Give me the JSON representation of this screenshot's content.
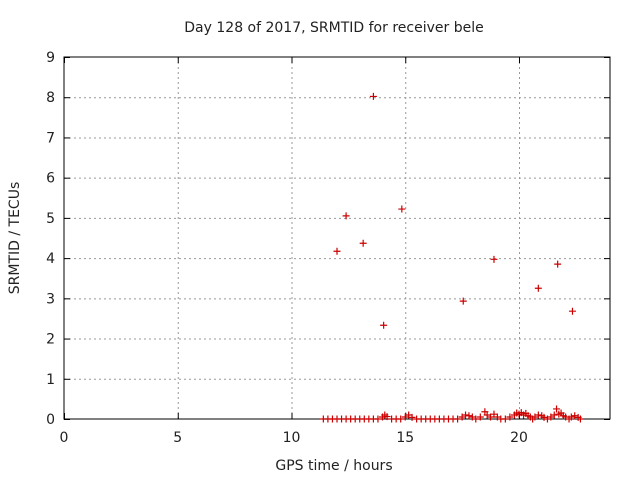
{
  "chart_data": {
    "type": "scatter",
    "title": "Day 128 of 2017, SRMTID for receiver bele",
    "xlabel": "GPS time / hours",
    "ylabel": "SRMTID / TECUs",
    "xlim": [
      0,
      24
    ],
    "ylim": [
      0,
      9
    ],
    "xticks": [
      0,
      5,
      10,
      15,
      20
    ],
    "yticks": [
      0,
      1,
      2,
      3,
      4,
      5,
      6,
      7,
      8,
      9
    ],
    "grid": true,
    "marker": "+",
    "colors": {
      "series": "#cc0000",
      "grid": "#999999",
      "axis": "#000000"
    },
    "series": [
      {
        "name": "SRMTID",
        "points": [
          [
            12.0,
            4.17
          ],
          [
            12.4,
            5.05
          ],
          [
            13.15,
            4.37
          ],
          [
            13.6,
            8.02
          ],
          [
            14.05,
            2.33
          ],
          [
            14.85,
            5.22
          ],
          [
            17.55,
            2.93
          ],
          [
            18.9,
            3.97
          ],
          [
            20.85,
            3.25
          ],
          [
            21.7,
            3.85
          ],
          [
            22.35,
            2.68
          ],
          [
            11.4,
            0.0
          ],
          [
            11.6,
            0.0
          ],
          [
            11.8,
            0.0
          ],
          [
            12.0,
            0.0
          ],
          [
            12.2,
            0.0
          ],
          [
            12.4,
            0.0
          ],
          [
            12.6,
            0.0
          ],
          [
            12.8,
            0.0
          ],
          [
            13.0,
            0.0
          ],
          [
            13.2,
            0.0
          ],
          [
            13.4,
            0.0
          ],
          [
            13.6,
            0.0
          ],
          [
            13.8,
            0.0
          ],
          [
            14.0,
            0.05
          ],
          [
            14.1,
            0.1
          ],
          [
            14.2,
            0.06
          ],
          [
            14.4,
            0.0
          ],
          [
            14.6,
            0.0
          ],
          [
            14.8,
            0.0
          ],
          [
            15.0,
            0.05
          ],
          [
            15.15,
            0.1
          ],
          [
            15.3,
            0.04
          ],
          [
            15.5,
            0.0
          ],
          [
            15.7,
            0.0
          ],
          [
            15.9,
            0.0
          ],
          [
            16.1,
            0.0
          ],
          [
            16.3,
            0.0
          ],
          [
            16.5,
            0.0
          ],
          [
            16.7,
            0.0
          ],
          [
            16.9,
            0.0
          ],
          [
            17.1,
            0.0
          ],
          [
            17.3,
            0.0
          ],
          [
            17.5,
            0.05
          ],
          [
            17.65,
            0.1
          ],
          [
            17.8,
            0.08
          ],
          [
            17.95,
            0.05
          ],
          [
            18.1,
            0.0
          ],
          [
            18.3,
            0.05
          ],
          [
            18.5,
            0.18
          ],
          [
            18.6,
            0.1
          ],
          [
            18.75,
            0.05
          ],
          [
            18.9,
            0.12
          ],
          [
            19.05,
            0.05
          ],
          [
            19.2,
            0.0
          ],
          [
            19.4,
            0.0
          ],
          [
            19.6,
            0.05
          ],
          [
            19.8,
            0.1
          ],
          [
            19.9,
            0.15
          ],
          [
            20.0,
            0.12
          ],
          [
            20.1,
            0.16
          ],
          [
            20.2,
            0.1
          ],
          [
            20.3,
            0.14
          ],
          [
            20.4,
            0.08
          ],
          [
            20.5,
            0.05
          ],
          [
            20.6,
            0.0
          ],
          [
            20.7,
            0.05
          ],
          [
            20.85,
            0.1
          ],
          [
            21.0,
            0.08
          ],
          [
            21.1,
            0.04
          ],
          [
            21.25,
            0.0
          ],
          [
            21.4,
            0.05
          ],
          [
            21.55,
            0.1
          ],
          [
            21.65,
            0.25
          ],
          [
            21.75,
            0.12
          ],
          [
            21.85,
            0.15
          ],
          [
            21.95,
            0.08
          ],
          [
            22.05,
            0.05
          ],
          [
            22.2,
            0.0
          ],
          [
            22.3,
            0.05
          ],
          [
            22.45,
            0.08
          ],
          [
            22.6,
            0.04
          ],
          [
            22.7,
            0.0
          ]
        ]
      }
    ]
  }
}
